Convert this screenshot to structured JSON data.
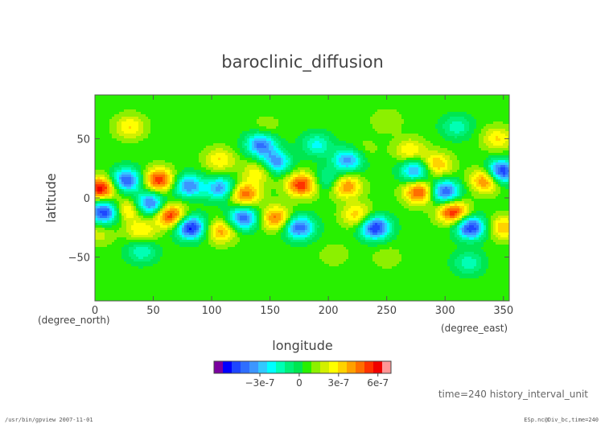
{
  "footer": {
    "left": "/usr/bin/gpview  2007-11-01",
    "right": "ESp.nc@Div_bc,time=240"
  },
  "chart_data": {
    "type": "heatmap",
    "title": "baroclinic_diffusion",
    "xlabel": "longitude",
    "ylabel": "latitude",
    "x_unit": "(degree_east)",
    "y_unit": "(degree_north)",
    "xlim": [
      0,
      355
    ],
    "ylim": [
      -87,
      87
    ],
    "x_ticks": [
      0,
      50,
      100,
      150,
      200,
      250,
      300,
      350
    ],
    "x_tick_labels": [
      "0",
      "50",
      "100",
      "150",
      "200",
      "250",
      "300",
      "350"
    ],
    "y_ticks": [
      -50,
      0,
      50
    ],
    "y_tick_labels": [
      "−50",
      "0",
      "50"
    ],
    "grid": false,
    "annotation": "time=240 history_interval_unit",
    "colorbar": {
      "min": -6.5e-07,
      "max": 7e-07,
      "tick_values": [
        -3e-07,
        0,
        3e-07,
        6e-07
      ],
      "tick_labels": [
        "−3e-7",
        "0",
        "3e-7",
        "6e-7"
      ],
      "colors": [
        "#7a00a0",
        "#0000ff",
        "#1e46ff",
        "#2e6eff",
        "#3c96ff",
        "#32c8ff",
        "#00ffff",
        "#00ffb4",
        "#00f078",
        "#00e650",
        "#28f000",
        "#8cf000",
        "#d2f000",
        "#ffff00",
        "#ffd200",
        "#ffa000",
        "#ff6e00",
        "#ff3200",
        "#f00000",
        "#ff9696"
      ]
    },
    "background_value": 6e-08,
    "features": [
      {
        "lon": 5,
        "lat": 8,
        "value": 6.2e-07
      },
      {
        "lon": 8,
        "lat": -12,
        "value": -5.2e-07
      },
      {
        "lon": 3,
        "lat": -30,
        "value": 2e-07
      },
      {
        "lon": 27,
        "lat": 15,
        "value": -4.6e-07
      },
      {
        "lon": 28,
        "lat": -10,
        "value": 3.6e-07
      },
      {
        "lon": 47,
        "lat": -5,
        "value": -4.4e-07
      },
      {
        "lon": 55,
        "lat": 15,
        "value": 5.6e-07
      },
      {
        "lon": 40,
        "lat": -28,
        "value": 3e-07
      },
      {
        "lon": 65,
        "lat": -15,
        "value": 5.8e-07
      },
      {
        "lon": 80,
        "lat": 10,
        "value": -3.8e-07
      },
      {
        "lon": 82,
        "lat": -25,
        "value": -5.6e-07
      },
      {
        "lon": 108,
        "lat": 8,
        "value": -3.6e-07
      },
      {
        "lon": 108,
        "lat": -28,
        "value": 4e-07
      },
      {
        "lon": 107,
        "lat": 32,
        "value": 3e-07
      },
      {
        "lon": 128,
        "lat": 3,
        "value": 5e-07
      },
      {
        "lon": 127,
        "lat": -17,
        "value": -4.4e-07
      },
      {
        "lon": 142,
        "lat": 45,
        "value": -4e-07
      },
      {
        "lon": 140,
        "lat": 22,
        "value": 3e-07
      },
      {
        "lon": 155,
        "lat": 30,
        "value": -3.6e-07
      },
      {
        "lon": 155,
        "lat": -17,
        "value": 4.6e-07
      },
      {
        "lon": 177,
        "lat": 11,
        "value": 5.6e-07
      },
      {
        "lon": 175,
        "lat": -25,
        "value": -4.4e-07
      },
      {
        "lon": 147,
        "lat": 60,
        "value": 1.4e-07
      },
      {
        "lon": 30,
        "lat": 60,
        "value": 3e-07
      },
      {
        "lon": 190,
        "lat": 45,
        "value": -2e-07
      },
      {
        "lon": 215,
        "lat": 10,
        "value": 4.6e-07
      },
      {
        "lon": 217,
        "lat": 32,
        "value": -3.6e-07
      },
      {
        "lon": 225,
        "lat": -15,
        "value": 3.6e-07
      },
      {
        "lon": 240,
        "lat": -25,
        "value": -5.4e-07
      },
      {
        "lon": 275,
        "lat": 23,
        "value": -3.8e-07
      },
      {
        "lon": 278,
        "lat": 5,
        "value": 5.4e-07
      },
      {
        "lon": 270,
        "lat": 40,
        "value": 3e-07
      },
      {
        "lon": 300,
        "lat": 5,
        "value": -4.8e-07
      },
      {
        "lon": 307,
        "lat": -12,
        "value": 5.8e-07
      },
      {
        "lon": 292,
        "lat": 28,
        "value": 4e-07
      },
      {
        "lon": 322,
        "lat": -25,
        "value": -5.2e-07
      },
      {
        "lon": 335,
        "lat": 15,
        "value": 5e-07
      },
      {
        "lon": 348,
        "lat": 22,
        "value": -5.6e-07
      },
      {
        "lon": 350,
        "lat": -25,
        "value": 3.6e-07
      },
      {
        "lon": 345,
        "lat": 50,
        "value": 3e-07
      },
      {
        "lon": 310,
        "lat": 60,
        "value": -1.6e-07
      },
      {
        "lon": 250,
        "lat": 65,
        "value": 1.6e-07
      },
      {
        "lon": 205,
        "lat": -48,
        "value": 1.4e-07
      },
      {
        "lon": 250,
        "lat": -50,
        "value": 1.4e-07
      },
      {
        "lon": 320,
        "lat": -55,
        "value": -1.6e-07
      },
      {
        "lon": 40,
        "lat": -45,
        "value": -1.8e-07
      },
      {
        "lon": 200,
        "lat": 15,
        "value": -1.8e-07
      },
      {
        "lon": 230,
        "lat": 40,
        "value": 1.4e-07
      }
    ]
  }
}
